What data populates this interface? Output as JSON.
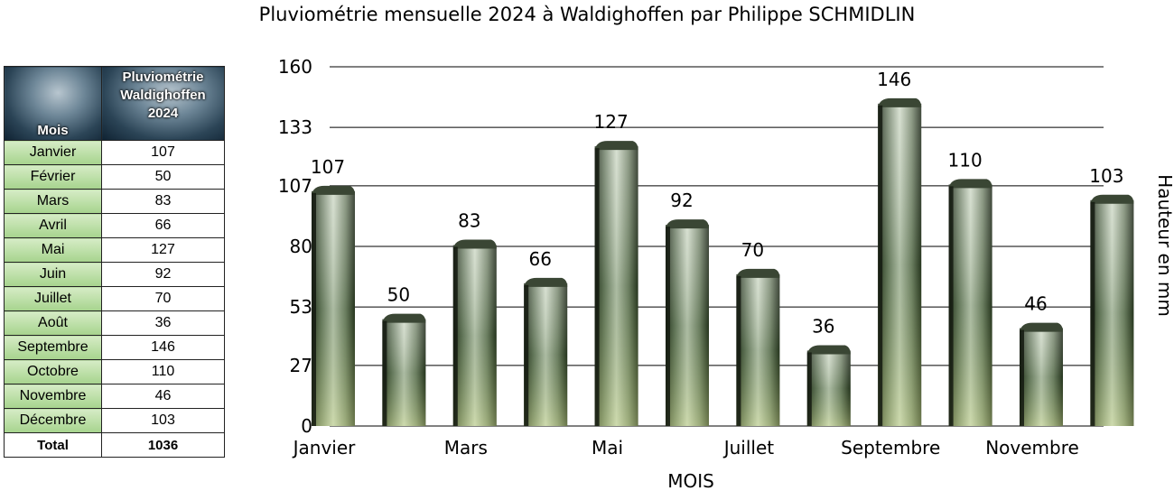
{
  "chart_data": {
    "type": "bar",
    "title": "Pluviométrie mensuelle 2024 à Waldighoffen par Philippe SCHMIDLIN",
    "xlabel": "MOIS",
    "ylabel": "Hauteur en mm",
    "categories": [
      "Janvier",
      "Février",
      "Mars",
      "Avril",
      "Mai",
      "Juin",
      "Juillet",
      "Août",
      "Septembre",
      "Octobre",
      "Novembre",
      "Décembre"
    ],
    "x_tick_labels": [
      "Janvier",
      "",
      "Mars",
      "",
      "Mai",
      "",
      "Juillet",
      "",
      "Septembre",
      "",
      "Novembre",
      ""
    ],
    "values": [
      107,
      50,
      83,
      66,
      127,
      92,
      70,
      36,
      146,
      110,
      46,
      103
    ],
    "data_labels": [
      "107",
      "50",
      "83",
      "66",
      "127",
      "92",
      "70",
      "36",
      "146",
      "110",
      "46",
      "103"
    ],
    "y_ticks": [
      "0",
      "27",
      "53",
      "80",
      "107",
      "133",
      "160"
    ],
    "ylim": [
      0,
      160
    ],
    "grid": true,
    "legend": "none"
  },
  "table": {
    "header_month": "Mois",
    "header_value_lines": [
      "Pluviométrie",
      "Waldighoffen",
      "2024"
    ],
    "rows": [
      {
        "month": "Janvier",
        "value": "107"
      },
      {
        "month": "Février",
        "value": "50"
      },
      {
        "month": "Mars",
        "value": "83"
      },
      {
        "month": "Avril",
        "value": "66"
      },
      {
        "month": "Mai",
        "value": "127"
      },
      {
        "month": "Juin",
        "value": "92"
      },
      {
        "month": "Juillet",
        "value": "70"
      },
      {
        "month": "Août",
        "value": "36"
      },
      {
        "month": "Septembre",
        "value": "146"
      },
      {
        "month": "Octobre",
        "value": "110"
      },
      {
        "month": "Novembre",
        "value": "46"
      },
      {
        "month": "Décembre",
        "value": "103"
      }
    ],
    "total_label": "Total",
    "total_value": "1036"
  },
  "colors": {
    "bar_dark": "#2a3324",
    "bar_mid": "#8a9883",
    "bar_light": "#d7e0cf",
    "leaf": "#c9d98a",
    "month_cell": "#b5dc9c",
    "grid": "#000000"
  }
}
